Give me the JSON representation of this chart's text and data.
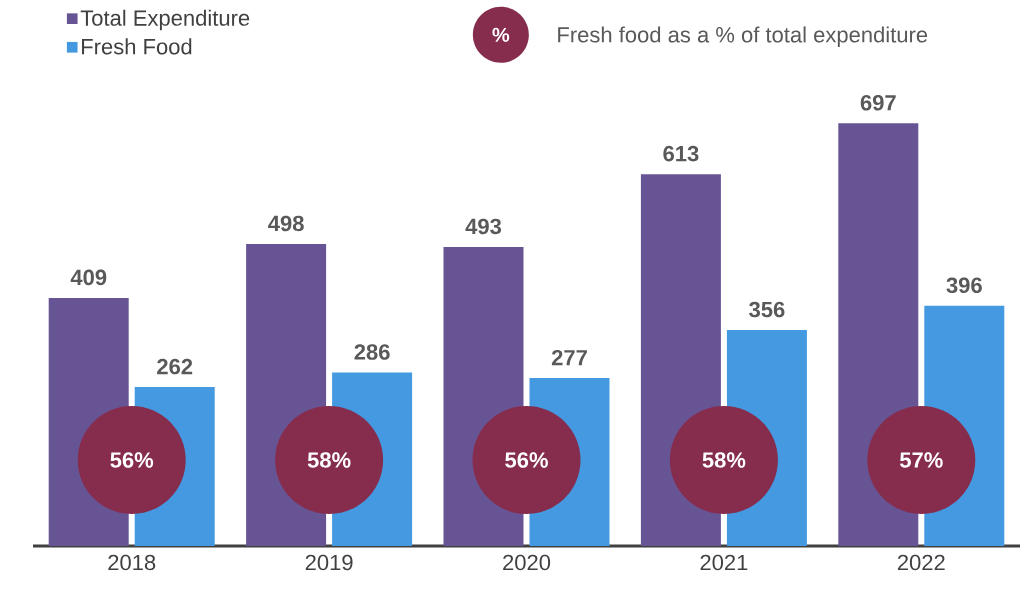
{
  "chart_data": {
    "type": "bar",
    "categories": [
      "2018",
      "2019",
      "2020",
      "2021",
      "2022"
    ],
    "series": [
      {
        "name": "Total Expenditure",
        "color": "#675494",
        "values": [
          409,
          498,
          493,
          613,
          697
        ]
      },
      {
        "name": "Fresh Food",
        "color": "#4599e0",
        "values": [
          262,
          286,
          277,
          356,
          396
        ]
      }
    ],
    "data_labels": true,
    "legend": "top left",
    "annotations": [
      "%",
      "Fresh food as a % of total expenditure",
      {
        "text": "56%",
        "x": "2018"
      },
      {
        "text": "58%",
        "x": "2019"
      },
      {
        "text": "56%",
        "x": "2020"
      },
      {
        "text": "58%",
        "x": "2021"
      },
      {
        "text": "57%",
        "x": "2022"
      }
    ]
  }
}
